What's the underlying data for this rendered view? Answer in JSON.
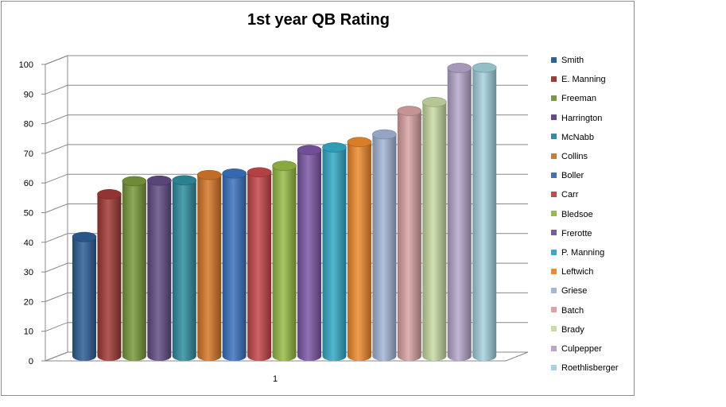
{
  "chart_data": {
    "type": "bar",
    "title": "1st year QB Rating",
    "xlabel": "",
    "ylabel": "",
    "categories": [
      "1"
    ],
    "ylim": [
      0,
      100
    ],
    "yticks": [
      0,
      10,
      20,
      30,
      40,
      50,
      60,
      70,
      80,
      90,
      100
    ],
    "grid": true,
    "legend_position": "right",
    "series": [
      {
        "name": "Smith",
        "values": [
          41
        ],
        "color": "#2f5f98"
      },
      {
        "name": "E. Manning",
        "values": [
          55.4
        ],
        "color": "#a33a37"
      },
      {
        "name": "Freeman",
        "values": [
          59.8
        ],
        "color": "#7a9a3c"
      },
      {
        "name": "Harrington",
        "values": [
          60
        ],
        "color": "#634d86"
      },
      {
        "name": "McNabb",
        "values": [
          60.1
        ],
        "color": "#2f8fa1"
      },
      {
        "name": "Collins",
        "values": [
          61.9
        ],
        "color": "#d7782a"
      },
      {
        "name": "Boller",
        "values": [
          62.4
        ],
        "color": "#3c73c0"
      },
      {
        "name": "Carr",
        "values": [
          62.8
        ],
        "color": "#c5484a"
      },
      {
        "name": "Bledsoe",
        "values": [
          65
        ],
        "color": "#95bd45"
      },
      {
        "name": "Frerotte",
        "values": [
          70.3
        ],
        "color": "#7c58a8"
      },
      {
        "name": "P. Manning",
        "values": [
          71.2
        ],
        "color": "#34acc8"
      },
      {
        "name": "Leftwich",
        "values": [
          73
        ],
        "color": "#f08c2e"
      },
      {
        "name": "Griese",
        "values": [
          75.6
        ],
        "color": "#a4b6d8"
      },
      {
        "name": "Batch",
        "values": [
          83.5
        ],
        "color": "#dba3a3"
      },
      {
        "name": "Brady",
        "values": [
          86.5
        ],
        "color": "#c8dca4"
      },
      {
        "name": "Culpepper",
        "values": [
          98
        ],
        "color": "#b7a8cc"
      },
      {
        "name": "Roethlisberger",
        "values": [
          98.1
        ],
        "color": "#a4d2e0"
      }
    ]
  }
}
